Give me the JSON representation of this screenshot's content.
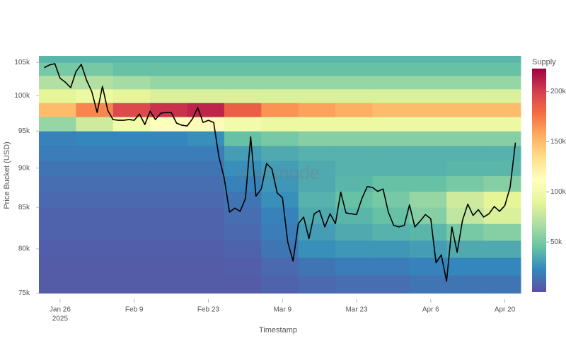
{
  "chart_data": {
    "type": "heatmap",
    "x_label": "Timestamp",
    "y_label": "Price Bucket (USD)",
    "watermark": "glassnode",
    "colorbar_title": "Supply",
    "log_y": true,
    "xlim": [
      "2025-01-22",
      "2025-04-23"
    ],
    "ylim": [
      74500,
      106000
    ],
    "xticks": [
      {
        "value": "2025-01-26",
        "label": "Jan 26",
        "sublabel": "2025"
      },
      {
        "value": "2025-02-09",
        "label": "Feb 9"
      },
      {
        "value": "2025-02-23",
        "label": "Feb 23"
      },
      {
        "value": "2025-03-09",
        "label": "Mar 9"
      },
      {
        "value": "2025-03-23",
        "label": "Mar 23"
      },
      {
        "value": "2025-04-06",
        "label": "Apr 6"
      },
      {
        "value": "2025-04-20",
        "label": "Apr 20"
      }
    ],
    "yticks": [
      {
        "value": 75000,
        "label": "75k"
      },
      {
        "value": 80000,
        "label": "80k"
      },
      {
        "value": 85000,
        "label": "85k"
      },
      {
        "value": 90000,
        "label": "90k"
      },
      {
        "value": 95000,
        "label": "95k"
      },
      {
        "value": 100000,
        "label": "100k"
      },
      {
        "value": 105000,
        "label": "105k"
      }
    ],
    "zlim": [
      0,
      223000
    ],
    "zticks": [
      {
        "value": 50000,
        "label": "50k"
      },
      {
        "value": 100000,
        "label": "100k"
      },
      {
        "value": 150000,
        "label": "150k"
      },
      {
        "value": 200000,
        "label": "200k"
      }
    ],
    "colorscale": [
      "#5e4fa2",
      "#3288bd",
      "#66c2a5",
      "#abdda4",
      "#e6f598",
      "#ffffbf",
      "#fee08b",
      "#fdae61",
      "#f46d43",
      "#d53e4f",
      "#9e0142"
    ],
    "x_bins": [
      "2025-01-22",
      "2025-01-29",
      "2025-02-05",
      "2025-02-12",
      "2025-02-19",
      "2025-02-26",
      "2025-03-05",
      "2025-03-12",
      "2025-03-19",
      "2025-03-26",
      "2025-04-02",
      "2025-04-09",
      "2025-04-16",
      "2025-04-23"
    ],
    "y_bins": [
      75000,
      77000,
      79000,
      81000,
      83000,
      85000,
      87000,
      89000,
      91000,
      93000,
      95000,
      97000,
      99000,
      101000,
      103000,
      105000,
      106000
    ],
    "z": [
      [
        5000,
        5000,
        5000,
        5000,
        5000,
        5000,
        8000,
        10000,
        12000,
        12000,
        15000,
        15000,
        15000
      ],
      [
        5000,
        5000,
        5000,
        5000,
        5000,
        6000,
        10000,
        15000,
        18000,
        18000,
        20000,
        22000,
        22000
      ],
      [
        6000,
        6000,
        6000,
        6000,
        6000,
        8000,
        15000,
        25000,
        28000,
        28000,
        30000,
        35000,
        35000
      ],
      [
        8000,
        8000,
        8000,
        8000,
        8000,
        10000,
        18000,
        30000,
        35000,
        38000,
        40000,
        50000,
        55000
      ],
      [
        8000,
        8000,
        8000,
        8000,
        8000,
        12000,
        20000,
        35000,
        40000,
        45000,
        55000,
        75000,
        85000
      ],
      [
        10000,
        10000,
        10000,
        10000,
        10000,
        15000,
        25000,
        38000,
        45000,
        50000,
        60000,
        80000,
        90000
      ],
      [
        12000,
        12000,
        12000,
        12000,
        12000,
        20000,
        28000,
        35000,
        40000,
        45000,
        45000,
        50000,
        55000
      ],
      [
        15000,
        15000,
        15000,
        15000,
        15000,
        25000,
        30000,
        35000,
        38000,
        38000,
        38000,
        40000,
        40000
      ],
      [
        18000,
        18000,
        18000,
        18000,
        18000,
        30000,
        35000,
        38000,
        38000,
        38000,
        38000,
        38000,
        38000
      ],
      [
        20000,
        22000,
        22000,
        22000,
        25000,
        45000,
        50000,
        55000,
        55000,
        55000,
        55000,
        55000,
        55000
      ],
      [
        60000,
        80000,
        100000,
        110000,
        115000,
        100000,
        95000,
        95000,
        95000,
        95000,
        95000,
        95000,
        95000
      ],
      [
        150000,
        170000,
        195000,
        205000,
        210000,
        185000,
        165000,
        160000,
        155000,
        150000,
        150000,
        150000,
        150000
      ],
      [
        90000,
        95000,
        90000,
        85000,
        85000,
        85000,
        85000,
        85000,
        85000,
        85000,
        85000,
        85000,
        85000
      ],
      [
        70000,
        70000,
        65000,
        60000,
        60000,
        60000,
        60000,
        60000,
        60000,
        60000,
        60000,
        60000,
        60000
      ],
      [
        50000,
        50000,
        45000,
        45000,
        45000,
        45000,
        45000,
        45000,
        45000,
        45000,
        45000,
        45000,
        45000
      ],
      [
        40000,
        40000,
        40000,
        40000,
        40000,
        40000,
        40000,
        40000,
        40000,
        40000,
        40000,
        40000,
        40000
      ]
    ],
    "line": {
      "color": "#000000",
      "x": [
        "2025-01-23",
        "2025-01-24",
        "2025-01-25",
        "2025-01-26",
        "2025-01-27",
        "2025-01-28",
        "2025-01-29",
        "2025-01-30",
        "2025-01-31",
        "2025-02-01",
        "2025-02-02",
        "2025-02-03",
        "2025-02-04",
        "2025-02-05",
        "2025-02-06",
        "2025-02-07",
        "2025-02-08",
        "2025-02-09",
        "2025-02-10",
        "2025-02-11",
        "2025-02-12",
        "2025-02-13",
        "2025-02-14",
        "2025-02-15",
        "2025-02-16",
        "2025-02-17",
        "2025-02-18",
        "2025-02-19",
        "2025-02-20",
        "2025-02-21",
        "2025-02-22",
        "2025-02-23",
        "2025-02-24",
        "2025-02-25",
        "2025-02-26",
        "2025-02-27",
        "2025-02-28",
        "2025-03-01",
        "2025-03-02",
        "2025-03-03",
        "2025-03-04",
        "2025-03-05",
        "2025-03-06",
        "2025-03-07",
        "2025-03-08",
        "2025-03-09",
        "2025-03-10",
        "2025-03-11",
        "2025-03-12",
        "2025-03-13",
        "2025-03-14",
        "2025-03-15",
        "2025-03-16",
        "2025-03-17",
        "2025-03-18",
        "2025-03-19",
        "2025-03-20",
        "2025-03-21",
        "2025-03-22",
        "2025-03-23",
        "2025-03-24",
        "2025-03-25",
        "2025-03-26",
        "2025-03-27",
        "2025-03-28",
        "2025-03-29",
        "2025-03-30",
        "2025-03-31",
        "2025-04-01",
        "2025-04-02",
        "2025-04-03",
        "2025-04-04",
        "2025-04-05",
        "2025-04-06",
        "2025-04-07",
        "2025-04-08",
        "2025-04-09",
        "2025-04-10",
        "2025-04-11",
        "2025-04-12",
        "2025-04-13",
        "2025-04-14",
        "2025-04-15",
        "2025-04-16",
        "2025-04-17",
        "2025-04-18",
        "2025-04-19",
        "2025-04-20",
        "2025-04-21",
        "2025-04-22"
      ],
      "values": [
        104200,
        104600,
        104800,
        102600,
        102000,
        101200,
        103600,
        104700,
        102300,
        100600,
        97600,
        101400,
        97900,
        96600,
        96500,
        96500,
        96600,
        96500,
        97400,
        95900,
        97800,
        96600,
        97500,
        97600,
        97600,
        96100,
        95800,
        95700,
        96700,
        98300,
        96200,
        96500,
        96200,
        91500,
        88700,
        84400,
        84900,
        84500,
        86100,
        94200,
        86400,
        87300,
        90600,
        89900,
        86800,
        86200,
        80800,
        78600,
        83000,
        83800,
        81200,
        84200,
        84600,
        82600,
        84200,
        83000,
        86900,
        84300,
        84200,
        84100,
        86100,
        87600,
        87500,
        87000,
        87300,
        84400,
        82800,
        82600,
        82800,
        85300,
        82600,
        83300,
        84100,
        83600,
        78400,
        79300,
        76300,
        82600,
        79600,
        83400,
        85400,
        84000,
        84700,
        83800,
        84200,
        85100,
        84500,
        85200,
        87500,
        93400
      ]
    }
  }
}
